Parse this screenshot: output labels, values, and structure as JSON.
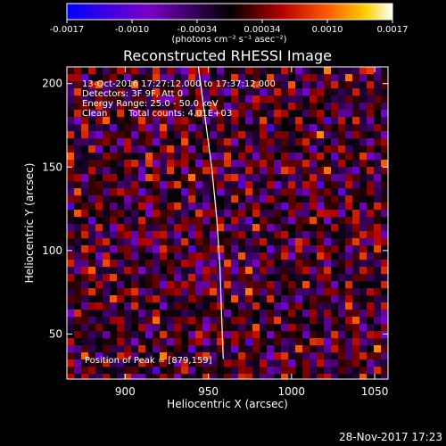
{
  "chart_data": {
    "type": "heatmap",
    "title": "Reconstructed RHESSI Image",
    "xlabel": "Heliocentric X (arcsec)",
    "ylabel": "Heliocentric Y (arcsec)",
    "xlim": [
      865,
      1058
    ],
    "ylim": [
      23,
      210
    ],
    "x_ticks": [
      "900",
      "950",
      "1000",
      "1050"
    ],
    "y_ticks": [
      "50",
      "100",
      "150",
      "200"
    ],
    "colorbar": {
      "ticks": [
        "-0.0017",
        "-0.0010",
        "-0.00034",
        "0.00034",
        "0.0010",
        "0.0017"
      ],
      "unit": "(photons cm⁻² s⁻¹ asec⁻²)",
      "range": [
        -0.0017,
        0.0017
      ],
      "colors": [
        "#0000ff",
        "#7a00c8",
        "#000000",
        "#b40000",
        "#ff5a00",
        "#ffd200",
        "#ffffff"
      ]
    },
    "annotations": {
      "time_range": "13-Oct-2016 17:27:12.000 to 17:37:12.000",
      "detectors": "Detectors: 3F 9F, Att 0",
      "energy_range": "Energy Range: 25.0 - 50.0 keV",
      "method": "Clean",
      "total_counts": "Total counts: 4.01E+03",
      "peak_position": "Position of Peak = [879,159]"
    },
    "peak": {
      "x": 879,
      "y": 159
    },
    "limb_curve": [
      [
        944,
        210
      ],
      [
        948,
        180
      ],
      [
        952,
        150
      ],
      [
        955,
        120
      ],
      [
        957,
        90
      ],
      [
        958,
        60
      ],
      [
        959,
        35
      ]
    ],
    "grid": false
  },
  "footer": {
    "timestamp": "28-Nov-2017 17:23"
  }
}
